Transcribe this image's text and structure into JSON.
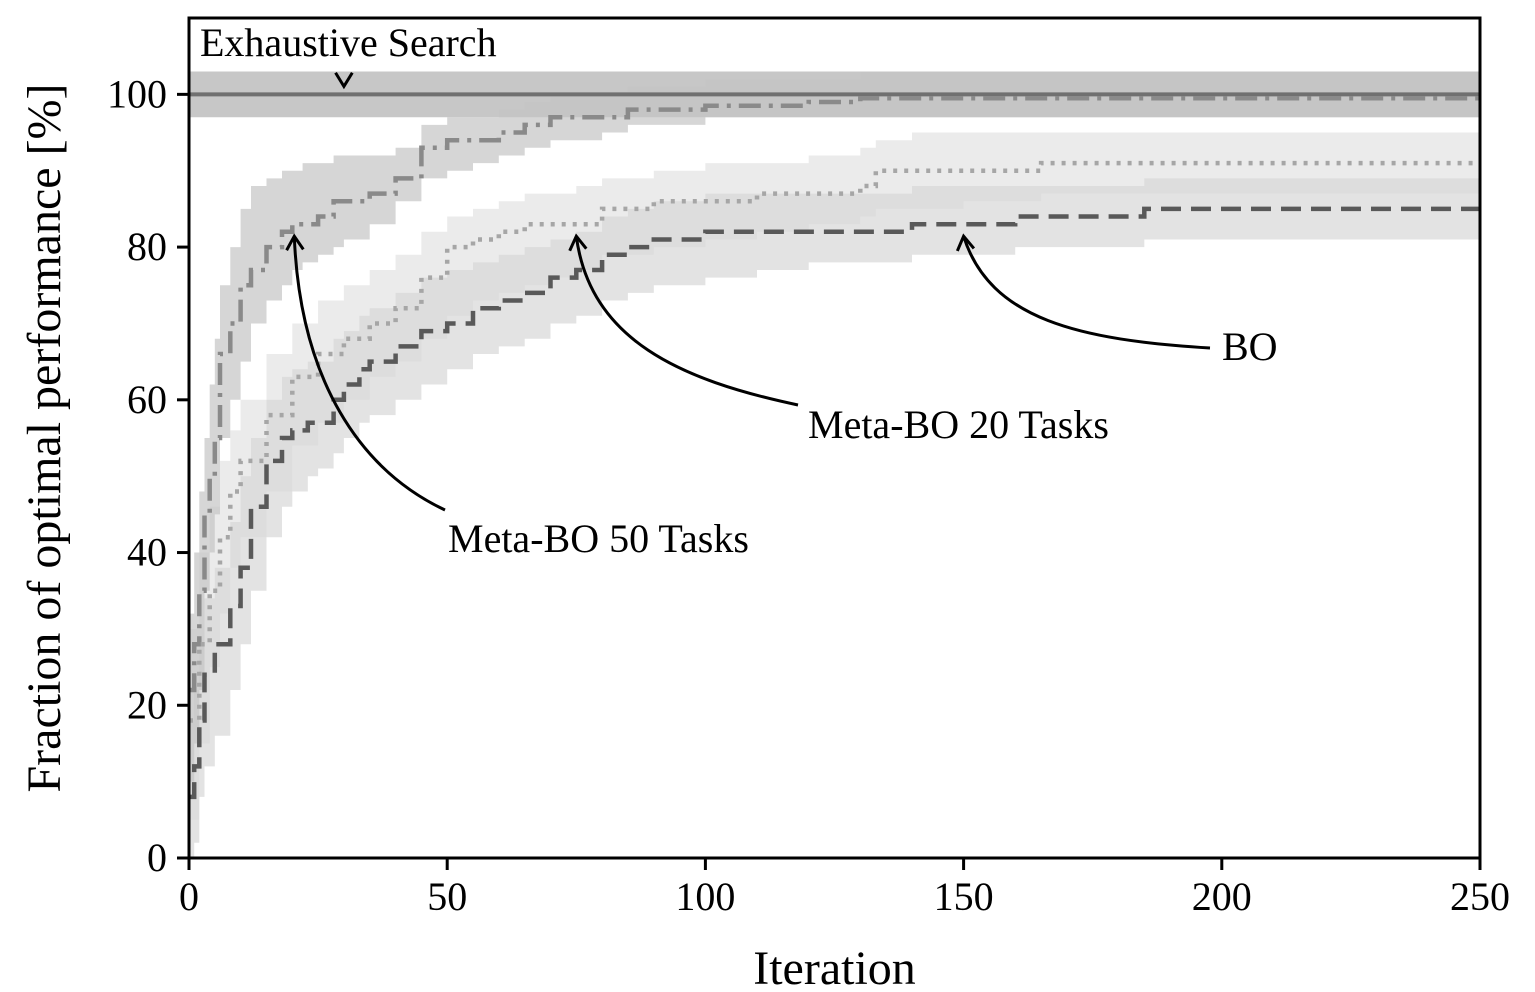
{
  "chart_data": {
    "type": "line",
    "xlabel": "Iteration",
    "ylabel": "Fraction of optimal performance [%]",
    "xlim": [
      0,
      250
    ],
    "ylim": [
      0,
      110
    ],
    "xticks": [
      0,
      50,
      100,
      150,
      200,
      250
    ],
    "yticks": [
      0,
      20,
      40,
      60,
      80,
      100
    ],
    "grid": false,
    "series": [
      {
        "key": "exhaustive",
        "label": "Exhaustive Search",
        "style": "solid",
        "color": "#707070",
        "band_color": "#bdbdbd",
        "x": [
          0,
          250
        ],
        "y": [
          100,
          100
        ],
        "lower": [
          97,
          97
        ],
        "upper": [
          103,
          103
        ]
      },
      {
        "key": "meta50",
        "label": "Meta-BO 50 Tasks",
        "style": "dashdot",
        "color": "#8a8a8a",
        "band_color": "#c4c4c4",
        "x": [
          0,
          1,
          2,
          3,
          4,
          5,
          6,
          8,
          10,
          12,
          15,
          18,
          20,
          22,
          25,
          28,
          30,
          35,
          40,
          45,
          50,
          55,
          60,
          65,
          70,
          75,
          80,
          85,
          90,
          100,
          110,
          120,
          125,
          130,
          150,
          175,
          200,
          225,
          250
        ],
        "y": [
          22,
          28,
          35,
          45,
          50,
          55,
          66,
          70,
          75,
          77,
          80,
          82,
          83,
          83,
          84,
          86,
          86,
          87,
          89,
          93,
          94,
          94,
          95,
          96,
          97,
          97,
          97,
          98,
          98,
          98.5,
          98.5,
          99,
          99,
          99.5,
          99.5,
          99.5,
          99.5,
          99.5,
          99.5
        ],
        "lower": [
          10,
          15,
          22,
          35,
          40,
          45,
          55,
          60,
          65,
          70,
          73,
          75,
          77,
          78,
          79,
          80,
          81,
          83,
          86,
          89,
          90,
          91,
          92,
          93,
          94,
          94,
          95,
          96,
          96,
          97,
          97,
          97,
          97,
          97,
          97,
          97,
          97,
          97,
          97
        ],
        "upper": [
          32,
          40,
          48,
          55,
          62,
          68,
          75,
          80,
          85,
          88,
          89,
          90,
          90,
          91,
          91,
          92,
          92,
          92,
          93,
          96,
          97,
          97,
          98,
          99,
          100,
          100,
          100,
          101,
          101,
          102,
          102,
          102,
          102,
          103,
          103,
          103,
          103,
          103,
          103
        ]
      },
      {
        "key": "meta20",
        "label": "Meta-BO 20 Tasks",
        "style": "dotted",
        "color": "#a6a6a6",
        "band_color": "#e3e3e3",
        "x": [
          0,
          2,
          4,
          6,
          8,
          10,
          15,
          20,
          25,
          30,
          35,
          40,
          45,
          50,
          55,
          60,
          65,
          70,
          75,
          80,
          90,
          100,
          110,
          120,
          130,
          133,
          140,
          150,
          165,
          180,
          200,
          250
        ],
        "y": [
          18,
          28,
          35,
          42,
          48,
          52,
          58,
          63,
          66,
          68,
          70,
          72,
          76,
          80,
          81,
          82,
          83,
          83,
          83,
          85,
          86,
          86,
          87,
          87,
          88,
          90,
          90,
          90,
          91,
          91,
          91,
          91
        ],
        "lower": [
          5,
          15,
          25,
          32,
          38,
          42,
          48,
          54,
          57,
          60,
          63,
          65,
          68,
          71,
          73,
          74,
          75,
          76,
          77,
          79,
          80,
          81,
          82,
          83,
          84,
          85,
          85,
          86,
          87,
          87,
          87,
          87
        ],
        "upper": [
          30,
          40,
          46,
          52,
          56,
          60,
          66,
          70,
          73,
          75,
          77,
          79,
          82,
          84,
          85,
          86,
          87,
          87,
          88,
          89,
          90,
          91,
          91,
          92,
          93,
          94,
          95,
          95,
          95,
          95,
          95,
          95
        ]
      },
      {
        "key": "bo",
        "label": "BO",
        "style": "dashed",
        "color": "#595959",
        "band_color": "#d7d7d7",
        "x": [
          0,
          1,
          2,
          3,
          5,
          8,
          10,
          12,
          15,
          18,
          20,
          23,
          25,
          28,
          30,
          33,
          35,
          40,
          45,
          50,
          55,
          60,
          65,
          70,
          75,
          80,
          85,
          90,
          100,
          110,
          120,
          130,
          140,
          150,
          160,
          170,
          180,
          185,
          200,
          225,
          250
        ],
        "y": [
          8,
          12,
          18,
          24,
          28,
          33,
          38,
          46,
          52,
          55,
          56,
          57,
          57,
          60,
          62,
          64,
          65,
          67,
          69,
          70,
          72,
          73,
          74,
          76,
          77,
          79,
          80,
          81,
          82,
          82,
          82,
          82,
          83,
          83,
          84,
          84,
          84,
          85,
          85,
          85,
          85
        ],
        "lower": [
          0,
          2,
          8,
          12,
          16,
          22,
          28,
          35,
          42,
          46,
          48,
          50,
          51,
          53,
          55,
          57,
          58,
          60,
          62,
          64,
          66,
          67,
          68,
          70,
          71,
          73,
          74,
          75,
          76,
          77,
          78,
          78,
          79,
          79,
          80,
          80,
          80,
          81,
          81,
          81,
          81
        ],
        "upper": [
          18,
          22,
          28,
          34,
          38,
          44,
          50,
          55,
          60,
          63,
          64,
          65,
          65,
          68,
          69,
          71,
          72,
          74,
          76,
          77,
          78,
          79,
          80,
          81,
          82,
          84,
          85,
          86,
          87,
          87,
          87,
          87,
          88,
          88,
          88,
          88,
          88,
          89,
          89,
          89,
          89
        ]
      }
    ],
    "annotations": [
      {
        "key": "ann_exhaustive",
        "text": "Exhaustive Search",
        "point": [
          30,
          100
        ]
      },
      {
        "key": "ann_meta50",
        "text": "Meta-BO 50 Tasks",
        "point": [
          20,
          83
        ]
      },
      {
        "key": "ann_meta20",
        "text": "Meta-BO 20 Tasks",
        "point": [
          75,
          83
        ]
      },
      {
        "key": "ann_bo",
        "text": "BO",
        "point": [
          150,
          83
        ]
      }
    ]
  }
}
